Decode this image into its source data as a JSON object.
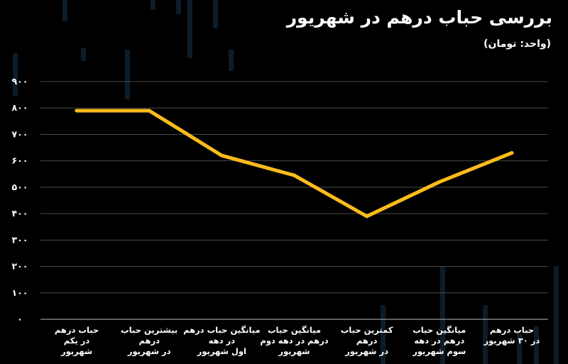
{
  "title": "بررسی حباب درهم در شهریور",
  "subtitle": "(واحد: تومان)",
  "colors": {
    "line": "#fcbc1c",
    "grid": "#4a4a4a",
    "background": "#000000",
    "decor": "#0c1c2a"
  },
  "chart_data": {
    "type": "line",
    "categories": [
      "حباب درهم در یکم شهریور",
      "بیشترین حباب درهم در شهریور",
      "میانگین حباب درهم در دهه اول شهریور",
      "میانگین حباب درهم در دهه دوم شهریور",
      "کمترین حباب درهم در شهریور",
      "میانگین حباب درهم در دهه سوم شهریور",
      "حباب درهم در ۳۰ شهریور"
    ],
    "category_lines": [
      [
        "حباب درهم",
        "در یکم",
        "شهریور"
      ],
      [
        "بیشترین حباب",
        "درهم",
        "در شهریور"
      ],
      [
        "میانگین حباب درهم",
        "در دهه",
        "اول شهریور"
      ],
      [
        "میانگین حباب",
        "درهم در دهه دوم",
        "شهریور"
      ],
      [
        "کمترین حباب",
        "درهم",
        "در شهریور"
      ],
      [
        "میانگین حباب",
        "درهم در دهه",
        "سوم شهریور"
      ],
      [
        "حباب درهم",
        "در ۳۰ شهریور"
      ]
    ],
    "values": [
      790,
      790,
      620,
      545,
      390,
      520,
      630
    ],
    "ylim": [
      0,
      900
    ],
    "yticks": [
      0,
      100,
      200,
      300,
      400,
      500,
      600,
      700,
      800,
      900
    ],
    "ytick_labels": [
      "۰",
      "۱۰۰",
      "۲۰۰",
      "۳۰۰",
      "۴۰۰",
      "۵۰۰",
      "۶۰۰",
      "۷۰۰",
      "۸۰۰",
      "۹۰۰"
    ],
    "grid": true,
    "legend": "none"
  }
}
